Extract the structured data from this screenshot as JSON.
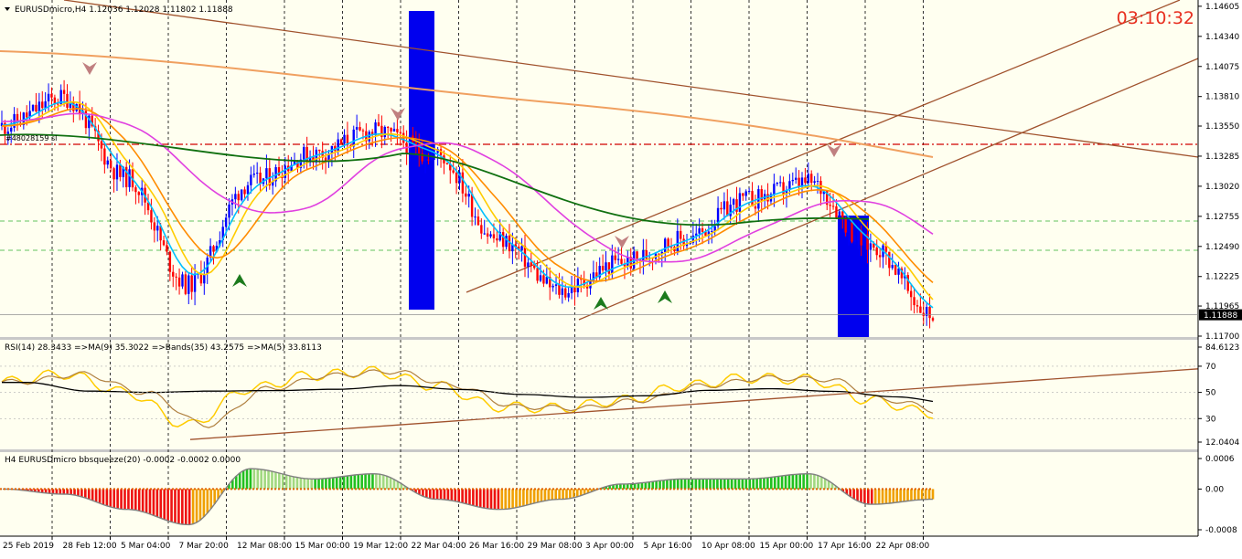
{
  "header": {
    "title": "EURUSDmicro,H4  1.12036 1.12028 1.11802 1.11888",
    "clock": "03:10:32",
    "order_label": "#48028159 sl"
  },
  "colors": {
    "bull": "#0000ff",
    "bear": "#ff0000",
    "ma_fast": "#00bfff",
    "ma_yellow": "#ffcc00",
    "ma_orange": "#ff8c00",
    "ma_magenta": "#e040e0",
    "ma_green": "#107010",
    "ma_peach": "#f0a060",
    "trend": "#a0522d",
    "box": "#0000ee",
    "squeeze_green": "#20c020",
    "squeeze_red": "#ee1010",
    "squeeze_orange": "#f0a000"
  },
  "chart_data": [
    {
      "type": "line",
      "name": "price",
      "ylim": [
        1.117,
        1.1462
      ],
      "yticks": [
        "1.14605",
        "1.14340",
        "1.14075",
        "1.13810",
        "1.13550",
        "1.13285",
        "1.13020",
        "1.12755",
        "1.12490",
        "1.12225",
        "1.11965",
        "1.11700"
      ],
      "current_price": "1.11888",
      "x": [
        "25 Feb 2019",
        "28 Feb 12:00",
        "5 Mar 04:00",
        "7 Mar 20:00",
        "12 Mar 08:00",
        "15 Mar 00:00",
        "19 Mar 12:00",
        "22 Mar 04:00",
        "26 Mar 16:00",
        "29 Mar 08:00",
        "3 Apr 00:00",
        "5 Apr 16:00",
        "10 Apr 08:00",
        "15 Apr 00:00",
        "17 Apr 16:00",
        "22 Apr 08:00"
      ],
      "y": [
        1.1355,
        1.138,
        1.131,
        1.1215,
        1.1305,
        1.133,
        1.135,
        1.133,
        1.1255,
        1.121,
        1.1235,
        1.1255,
        1.129,
        1.1305,
        1.125,
        1.1189
      ],
      "grid": true
    },
    {
      "type": "line",
      "name": "rsi",
      "label": "RSI(14) 28.3433  =>MA(9) 35.3022  =>Bands(35) 43.2575  =>MA(5) 33.8113",
      "ylim": [
        12.0404,
        84.6123
      ],
      "yticks": [
        "84.6123",
        "70",
        "50",
        "30",
        "12.0404"
      ],
      "x": [
        "25 Feb 2019",
        "28 Feb 12:00",
        "5 Mar 04:00",
        "7 Mar 20:00",
        "12 Mar 08:00",
        "15 Mar 00:00",
        "19 Mar 12:00",
        "22 Mar 04:00",
        "26 Mar 16:00",
        "29 Mar 08:00",
        "3 Apr 00:00",
        "5 Apr 16:00",
        "10 Apr 08:00",
        "15 Apr 00:00",
        "17 Apr 16:00",
        "22 Apr 08:00"
      ],
      "y": [
        58,
        64,
        50,
        25,
        53,
        63,
        66,
        55,
        39,
        38,
        44,
        55,
        61,
        60,
        44,
        34
      ]
    },
    {
      "type": "bar",
      "name": "bbsqueeze",
      "label": "H4 EURUSDmicro bbsqueeze(20) -0.0002 -0.0002 0.0000",
      "ylim": [
        -0.0008,
        0.0006
      ],
      "yticks": [
        "0.0006",
        "0.00",
        "-0.0008"
      ],
      "x": [
        "25 Feb 2019",
        "28 Feb 12:00",
        "5 Mar 04:00",
        "7 Mar 20:00",
        "12 Mar 08:00",
        "15 Mar 00:00",
        "19 Mar 12:00",
        "22 Mar 04:00",
        "26 Mar 16:00",
        "29 Mar 08:00",
        "3 Apr 00:00",
        "5 Apr 16:00",
        "10 Apr 08:00",
        "15 Apr 00:00",
        "17 Apr 16:00",
        "22 Apr 08:00"
      ],
      "y": [
        0.0,
        -0.0001,
        -0.0004,
        -0.0007,
        0.0004,
        0.0002,
        0.0003,
        -0.0002,
        -0.0004,
        -0.0002,
        0.0001,
        0.0002,
        0.0002,
        0.0003,
        -0.0003,
        -0.0002
      ]
    }
  ]
}
